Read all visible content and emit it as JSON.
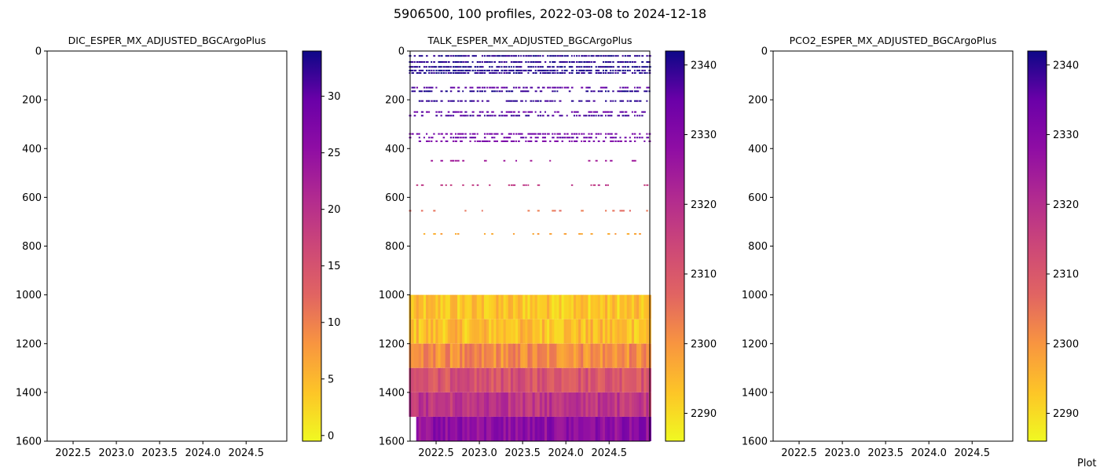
{
  "figure": {
    "title": "5906500, 100 profiles, 2022-03-08 to 2024-12-18",
    "corner_text": "Plot"
  },
  "chart_data": [
    {
      "type": "heatmap",
      "title": "DIC_ESPER_MX_ADJUSTED_BGCArgoPlus",
      "xlabel": "",
      "ylabel": "",
      "xlim": [
        2022.2,
        2024.97
      ],
      "ylim": [
        1600,
        0
      ],
      "x_ticks": [
        "2022.5",
        "2023.0",
        "2023.5",
        "2024.0",
        "2024.5"
      ],
      "y_ticks": [
        "0",
        "200",
        "400",
        "600",
        "800",
        "1000",
        "1200",
        "1400",
        "1600"
      ],
      "colorbar": {
        "colormap": "plasma_r",
        "range": [
          -0.5,
          34
        ],
        "ticks": [
          "0",
          "5",
          "10",
          "15",
          "20",
          "25",
          "30"
        ]
      },
      "cells": []
    },
    {
      "type": "heatmap",
      "title": "TALK_ESPER_MX_ADJUSTED_BGCArgoPlus",
      "xlabel": "",
      "ylabel": "",
      "xlim": [
        2022.2,
        2024.97
      ],
      "ylim": [
        1600,
        0
      ],
      "x_ticks": [
        "2022.5",
        "2023.0",
        "2023.5",
        "2024.0",
        "2024.5"
      ],
      "y_ticks": [
        "0",
        "200",
        "400",
        "600",
        "800",
        "1000",
        "1200",
        "1400",
        "1600"
      ],
      "colorbar": {
        "colormap": "plasma_r",
        "range": [
          2286,
          2342
        ],
        "ticks": [
          "2290",
          "2300",
          "2310",
          "2320",
          "2330",
          "2340"
        ]
      },
      "profile_time_range": [
        2022.2,
        2024.97
      ],
      "n_profiles": 100,
      "deep_layers": [
        {
          "depth": [
            1000,
            1100
          ],
          "value": 2293
        },
        {
          "depth": [
            1100,
            1200
          ],
          "value": 2294
        },
        {
          "depth": [
            1200,
            1300
          ],
          "value": 2301
        },
        {
          "depth": [
            1300,
            1400
          ],
          "value": 2311
        },
        {
          "depth": [
            1400,
            1500
          ],
          "value": 2318
        },
        {
          "depth": [
            1500,
            1600
          ],
          "value": 2328
        }
      ],
      "surface_layers": [
        {
          "depth": 20,
          "value": 2340
        },
        {
          "depth": 45,
          "value": 2340
        },
        {
          "depth": 65,
          "value": 2341
        },
        {
          "depth": 80,
          "value": 2341
        },
        {
          "depth": 90,
          "value": 2340
        },
        {
          "depth": 150,
          "value": 2336
        },
        {
          "depth": 165,
          "value": 2340
        },
        {
          "depth": 205,
          "value": 2339
        },
        {
          "depth": 250,
          "value": 2335
        },
        {
          "depth": 265,
          "value": 2338
        },
        {
          "depth": 340,
          "value": 2333
        },
        {
          "depth": 355,
          "value": 2335
        },
        {
          "depth": 370,
          "value": 2332
        },
        {
          "depth": 450,
          "value": 2325
        },
        {
          "depth": 550,
          "value": 2318
        },
        {
          "depth": 655,
          "value": 2305
        },
        {
          "depth": 750,
          "value": 2298
        }
      ]
    },
    {
      "type": "heatmap",
      "title": "PCO2_ESPER_MX_ADJUSTED_BGCArgoPlus",
      "xlabel": "",
      "ylabel": "",
      "xlim": [
        2022.2,
        2024.97
      ],
      "ylim": [
        1600,
        0
      ],
      "x_ticks": [
        "2022.5",
        "2023.0",
        "2023.5",
        "2024.0",
        "2024.5"
      ],
      "y_ticks": [
        "0",
        "200",
        "400",
        "600",
        "800",
        "1000",
        "1200",
        "1400",
        "1600"
      ],
      "colorbar": {
        "colormap": "plasma_r",
        "range": [
          2286,
          2342
        ],
        "ticks": [
          "2290",
          "2300",
          "2310",
          "2320",
          "2330",
          "2340"
        ]
      },
      "cells": []
    }
  ]
}
